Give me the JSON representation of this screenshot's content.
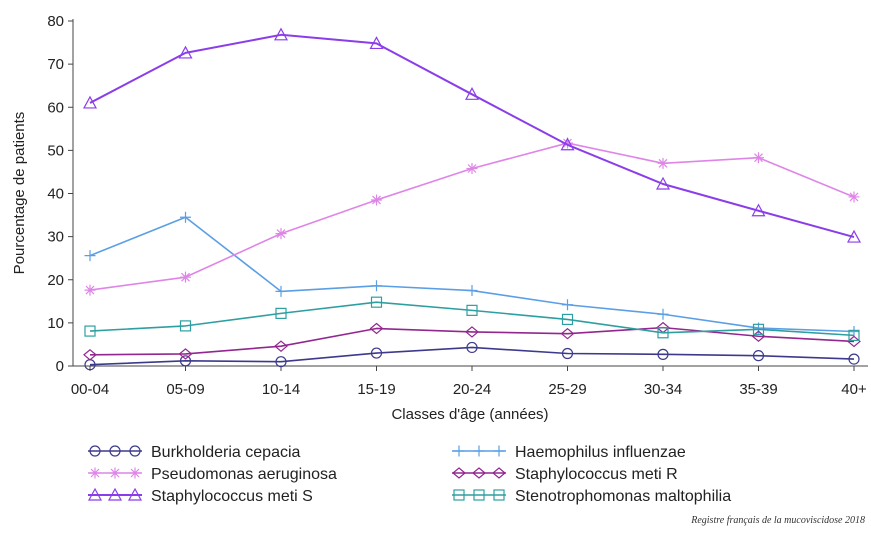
{
  "chart_data": {
    "type": "line",
    "xlabel": "Classes d'âge (années)",
    "ylabel": "Pourcentage de patients",
    "ylim": [
      0,
      80
    ],
    "yticks": [
      0,
      10,
      20,
      30,
      40,
      50,
      60,
      70,
      80
    ],
    "grid": false,
    "legend_position": "bottom",
    "categories": [
      "00-04",
      "05-09",
      "10-14",
      "15-19",
      "20-24",
      "25-29",
      "30-34",
      "35-39",
      "40+"
    ],
    "series": [
      {
        "name": "Burkholderia cepacia",
        "color": "#3d3a8c",
        "marker": "circle",
        "values": [
          0.3,
          1.2,
          1.0,
          3.0,
          4.3,
          2.9,
          2.7,
          2.4,
          1.6
        ]
      },
      {
        "name": "Haemophilus influenzae",
        "color": "#5a9fe6",
        "marker": "plus",
        "values": [
          25.6,
          34.5,
          17.3,
          18.6,
          17.5,
          14.2,
          12.0,
          8.8,
          8.0
        ]
      },
      {
        "name": "Pseudomonas aeruginosa",
        "color": "#df85e8",
        "marker": "star",
        "values": [
          17.6,
          20.6,
          30.7,
          38.5,
          45.8,
          51.7,
          47.0,
          48.3,
          39.2
        ]
      },
      {
        "name": "Staphylococcus meti R",
        "color": "#92278f",
        "marker": "diamond",
        "values": [
          2.6,
          2.8,
          4.6,
          8.7,
          7.9,
          7.5,
          8.9,
          6.9,
          5.7
        ]
      },
      {
        "name": "Staphylococcus meti S",
        "color": "#8b3dea",
        "marker": "triangle",
        "values": [
          61.0,
          72.6,
          76.8,
          74.8,
          63.0,
          51.3,
          42.2,
          36.0,
          29.9
        ]
      },
      {
        "name": "Stenotrophomonas maltophilia",
        "color": "#2e9fa0",
        "marker": "square",
        "values": [
          8.1,
          9.3,
          12.2,
          14.8,
          12.9,
          10.8,
          7.7,
          8.5,
          7.1
        ]
      }
    ]
  },
  "source_note": "Registre français de la mucoviscidose 2018"
}
